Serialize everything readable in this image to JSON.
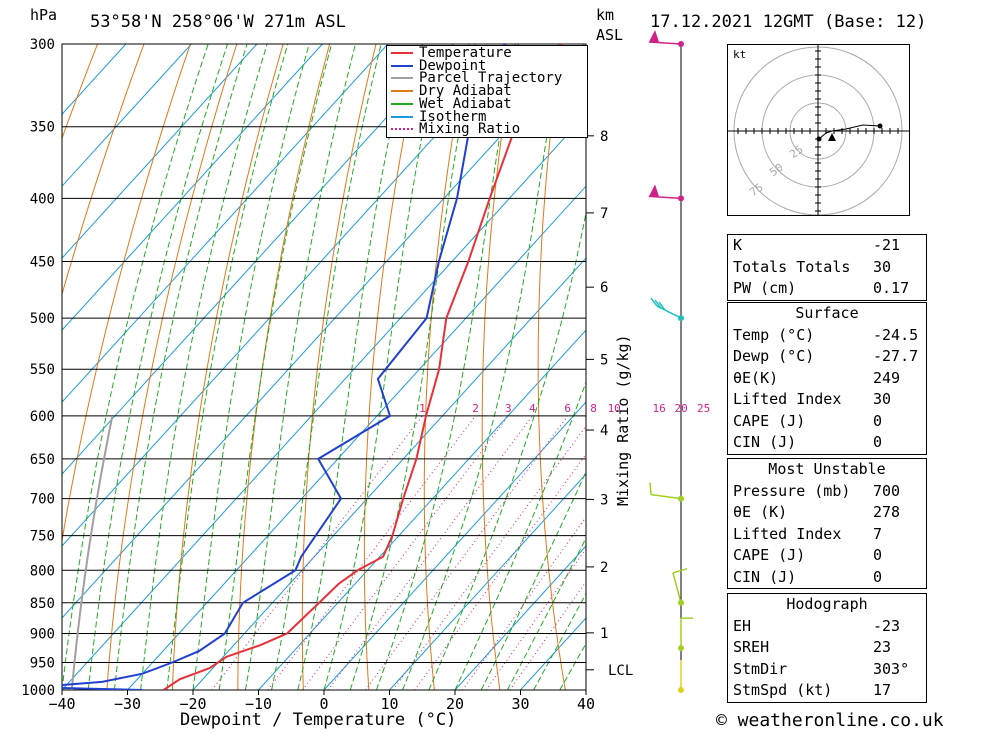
{
  "header": {
    "pressure_unit": "hPa",
    "location": "53°58'N  258°06'W  271m  ASL",
    "km_label": "km",
    "asl_label": "ASL",
    "datetime": "17.12.2021  12GMT  (Base: 12)"
  },
  "chart_data": {
    "type": "skew-t",
    "title": "53°58'N 258°06'W 271m ASL",
    "xlabel": "Dewpoint / Temperature (°C)",
    "ylabel": "hPa",
    "x_ticks": [
      -40,
      -30,
      -20,
      -10,
      0,
      10,
      20,
      30,
      40
    ],
    "pressure_levels": [
      300,
      350,
      400,
      450,
      500,
      550,
      600,
      650,
      700,
      750,
      800,
      850,
      900,
      950,
      1000
    ],
    "height_km_labels": [
      "8",
      "7",
      "6",
      "5",
      "4",
      "3",
      "2",
      "1",
      "LCL"
    ],
    "mixing_ratio_label": "Mixing Ratio (g/kg)",
    "mixing_ratio_values": [
      "1",
      "2",
      "3",
      "4",
      "6",
      "8",
      "10",
      "16",
      "20",
      "25"
    ],
    "legend": [
      "Temperature",
      "Dewpoint",
      "Parcel Trajectory",
      "Dry Adiabat",
      "Wet Adiabat",
      "Isotherm",
      "Mixing Ratio"
    ],
    "temperature_profile": [
      {
        "p": 1000,
        "t": -24.5
      },
      {
        "p": 980,
        "t": -23.5
      },
      {
        "p": 960,
        "t": -20.5
      },
      {
        "p": 940,
        "t": -19.5
      },
      {
        "p": 920,
        "t": -16.0
      },
      {
        "p": 900,
        "t": -13.5
      },
      {
        "p": 860,
        "t": -13.0
      },
      {
        "p": 820,
        "t": -12.5
      },
      {
        "p": 800,
        "t": -11.5
      },
      {
        "p": 780,
        "t": -9.5
      },
      {
        "p": 750,
        "t": -11.0
      },
      {
        "p": 700,
        "t": -14.5
      },
      {
        "p": 650,
        "t": -18.0
      },
      {
        "p": 600,
        "t": -22.5
      },
      {
        "p": 550,
        "t": -27.0
      },
      {
        "p": 500,
        "t": -33.0
      },
      {
        "p": 450,
        "t": -37.5
      },
      {
        "p": 400,
        "t": -43.0
      },
      {
        "p": 350,
        "t": -49.0
      },
      {
        "p": 320,
        "t": -53.5
      },
      {
        "p": 310,
        "t": -55.0
      },
      {
        "p": 300,
        "t": -53.5
      }
    ],
    "dewpoint_profile": [
      {
        "p": 1000,
        "t": -27.7
      },
      {
        "p": 995,
        "t": -45.0
      },
      {
        "p": 985,
        "t": -35.0
      },
      {
        "p": 970,
        "t": -30.0
      },
      {
        "p": 950,
        "t": -27.0
      },
      {
        "p": 930,
        "t": -24.5
      },
      {
        "p": 900,
        "t": -23.0
      },
      {
        "p": 850,
        "t": -24.5
      },
      {
        "p": 800,
        "t": -21.0
      },
      {
        "p": 780,
        "t": -22.0
      },
      {
        "p": 700,
        "t": -24.0
      },
      {
        "p": 650,
        "t": -33.0
      },
      {
        "p": 600,
        "t": -28.0
      },
      {
        "p": 560,
        "t": -35.0
      },
      {
        "p": 500,
        "t": -36.0
      },
      {
        "p": 450,
        "t": -42.0
      },
      {
        "p": 400,
        "t": -48.0
      },
      {
        "p": 350,
        "t": -56.0
      },
      {
        "p": 310,
        "t": -63.0
      },
      {
        "p": 300,
        "t": -62.0
      }
    ],
    "wind_barb_levels": [
      300,
      400,
      500,
      700,
      850,
      925,
      1000
    ]
  },
  "hodograph": {
    "unit": "kt",
    "rings": [
      "25",
      "50",
      "75"
    ]
  },
  "indices": {
    "rows": [
      {
        "key": "K",
        "value": "-21"
      },
      {
        "key": "Totals Totals",
        "value": "30"
      },
      {
        "key": "PW (cm)",
        "value": "0.17"
      }
    ]
  },
  "surface": {
    "title": "Surface",
    "rows": [
      {
        "key": "Temp (°C)",
        "value": "-24.5"
      },
      {
        "key": "Dewp (°C)",
        "value": "-27.7"
      },
      {
        "key": "θE(K)",
        "value": "249"
      },
      {
        "key": "Lifted Index",
        "value": "30"
      },
      {
        "key": "CAPE (J)",
        "value": "0"
      },
      {
        "key": "CIN (J)",
        "value": "0"
      }
    ]
  },
  "most_unstable": {
    "title": "Most Unstable",
    "rows": [
      {
        "key": "Pressure (mb)",
        "value": "700"
      },
      {
        "key": "θE (K)",
        "value": "278"
      },
      {
        "key": "Lifted Index",
        "value": "7"
      },
      {
        "key": "CAPE (J)",
        "value": "0"
      },
      {
        "key": "CIN (J)",
        "value": "0"
      }
    ]
  },
  "hodograph_stats": {
    "title": "Hodograph",
    "rows": [
      {
        "key": "EH",
        "value": "-23"
      },
      {
        "key": "SREH",
        "value": "23"
      },
      {
        "key": "StmDir",
        "value": "303°"
      },
      {
        "key": "StmSpd (kt)",
        "value": "17"
      }
    ]
  },
  "footer": {
    "copyright": "© weatheronline.co.uk"
  },
  "colors": {
    "temperature": "#e8303a",
    "dewpoint": "#2040d0",
    "parcel": "#a0a0a0",
    "dry_adiabat": "#e07818",
    "wet_adiabat": "#22aa22",
    "isotherm": "#1e9be0",
    "mixing_ratio": "#d0208a"
  }
}
